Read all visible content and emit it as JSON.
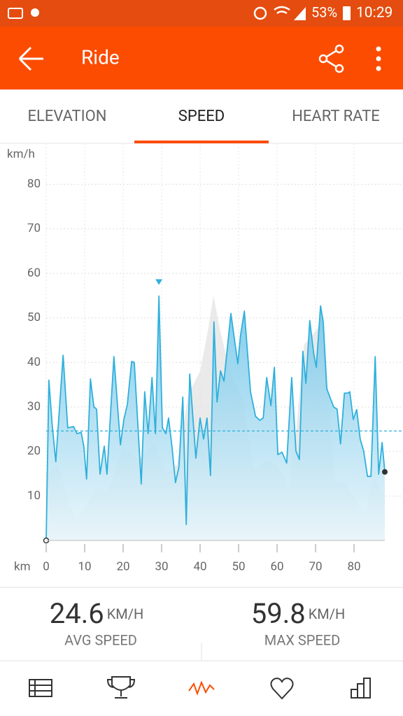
{
  "status_bar": {
    "battery": "53%",
    "time": "10:29"
  },
  "app_bar": {
    "title": "Ride"
  },
  "tabs": {
    "items": [
      "ELEVATION",
      "SPEED",
      "HEART RATE"
    ],
    "selected": 1
  },
  "chart_data": {
    "type": "line",
    "y_label": "km/h",
    "x_label": "km",
    "xlim": [
      0,
      88
    ],
    "ylim": [
      0,
      89.2
    ],
    "xticks": [
      0,
      10,
      20,
      30,
      40,
      50,
      60,
      70,
      80
    ],
    "yticks": [
      10,
      20,
      30,
      40,
      50,
      60,
      70,
      80
    ],
    "grid": true,
    "x": [
      0,
      0.7,
      1.6,
      2.5,
      4.4,
      5.6,
      7.1,
      8,
      9.1,
      9.8,
      10.5,
      11.5,
      12.4,
      13.1,
      14,
      15.1,
      15.8,
      17.6,
      19.3,
      20.2,
      21.1,
      22.2,
      22.9,
      24.7,
      25.6,
      26.5,
      27.5,
      28.4,
      29.3,
      30.2,
      31.1,
      31.8,
      32.7,
      33.6,
      34.5,
      35.5,
      36.4,
      37.3,
      38.9,
      40,
      40.9,
      41.8,
      42.7,
      43.6,
      44.4,
      45.3,
      46.2,
      48,
      49.8,
      50.5,
      51.5,
      53.1,
      54.4,
      55.5,
      56.4,
      57.3,
      58.4,
      59.3,
      60.2,
      61.3,
      62.5,
      63.8,
      64.9,
      65.8,
      66.7,
      67.5,
      68.5,
      69.5,
      70.2,
      71.3,
      72,
      72.9,
      74.7,
      75.6,
      76.5,
      77.5,
      78.4,
      78.9,
      79.8,
      80.7,
      81.6,
      82.5,
      83.5,
      84.4,
      85.5,
      86.4,
      87.3,
      88
    ],
    "series": [
      {
        "color": "#2fb0dc",
        "values": [
          0,
          36,
          25.6,
          17.7,
          41.6,
          25.3,
          25.6,
          24,
          24.3,
          21,
          13.8,
          36.3,
          30,
          29.5,
          14.9,
          21.2,
          14.9,
          41.3,
          21.5,
          27.2,
          30.6,
          40.2,
          40,
          12.7,
          33.4,
          24,
          36.6,
          24,
          54.9,
          25.3,
          24,
          27.5,
          21,
          13,
          16.5,
          32.2,
          3.6,
          37.4,
          18.5,
          27.5,
          22.8,
          27.5,
          14.6,
          49.1,
          31.1,
          38.1,
          35.8,
          51,
          39.7,
          46,
          51.5,
          33.4,
          27.9,
          27,
          27.5,
          36.6,
          30.3,
          38.9,
          19.3,
          19.8,
          17.4,
          36.6,
          20.1,
          18.2,
          42.5,
          35.3,
          49.4,
          42.1,
          38.9,
          52.7,
          49.1,
          34.1,
          30,
          29.5,
          21.7,
          33.1,
          33.1,
          33.4,
          27.2,
          29.4,
          22.8,
          20.1,
          14.4,
          14.4,
          41.3,
          14.9,
          22,
          15.4
        ]
      }
    ],
    "elevation_profile": {
      "color": "#e3e3e3",
      "x": [
        0,
        3,
        6,
        8,
        10,
        13,
        16,
        20,
        24,
        28,
        31,
        34,
        37,
        40,
        42,
        43.5,
        45,
        48,
        51,
        54,
        57,
        60,
        63,
        65,
        67,
        70,
        72,
        75,
        78,
        81,
        83,
        85,
        88
      ],
      "values": [
        15,
        17,
        8,
        5,
        7,
        12,
        11,
        21,
        18,
        22,
        15,
        17,
        33,
        38,
        47,
        55,
        48,
        37,
        32,
        16,
        18,
        17,
        12,
        25,
        44,
        47,
        50,
        13,
        13,
        8,
        6,
        14,
        10
      ]
    }
  },
  "stats": [
    {
      "value": 24.6,
      "unit": "KM/H",
      "label": "AVG SPEED"
    },
    {
      "value": 59.8,
      "unit": "KM/H",
      "label": "MAX SPEED"
    }
  ],
  "bottom_nav": {
    "selected": 2
  }
}
